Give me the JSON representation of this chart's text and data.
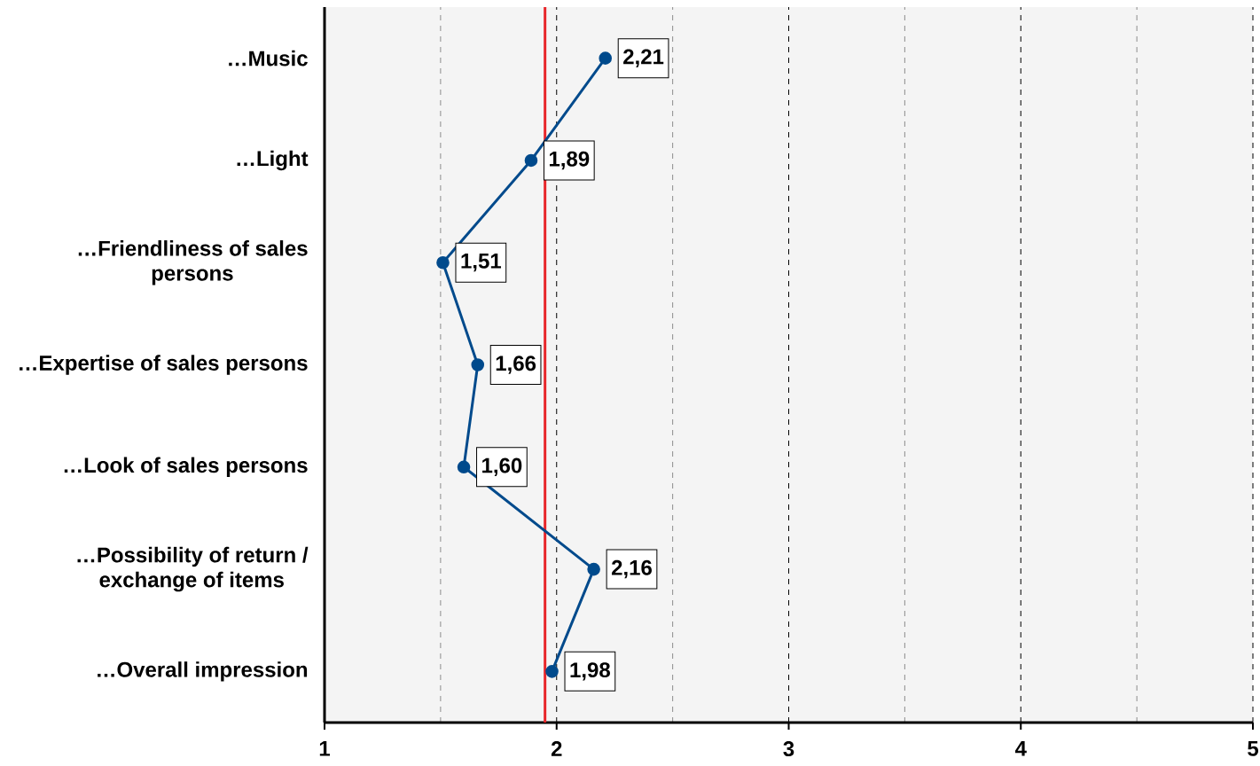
{
  "chart_data": {
    "type": "line",
    "orientation": "horizontal",
    "categories": [
      "…Music",
      "…Light",
      "…Friendliness of sales persons",
      "…Expertise of sales persons",
      "…Look of sales persons",
      "…Possibility of return / exchange of items",
      "…Overall impression"
    ],
    "series": [
      {
        "color": "#004a8c",
        "values": [
          2.21,
          1.89,
          1.51,
          1.66,
          1.6,
          2.16,
          1.98
        ],
        "value_labels": [
          "2,21",
          "1,89",
          "1,51",
          "1,66",
          "1,60",
          "2,16",
          "1,98"
        ]
      }
    ],
    "xlim": [
      1,
      5
    ],
    "xticks": [
      1,
      {
        "value": 1.5,
        "label": null
      },
      2,
      {
        "value": 2.5,
        "label": null
      },
      3,
      {
        "value": 3.5,
        "label": null
      },
      4,
      {
        "value": 4.5,
        "label": null
      },
      5
    ],
    "grid": "x",
    "marker": "circle",
    "line_style": "solid",
    "ref_lines": [
      {
        "axis": "x",
        "value": 1.95,
        "color": "#e8262a"
      }
    ]
  }
}
